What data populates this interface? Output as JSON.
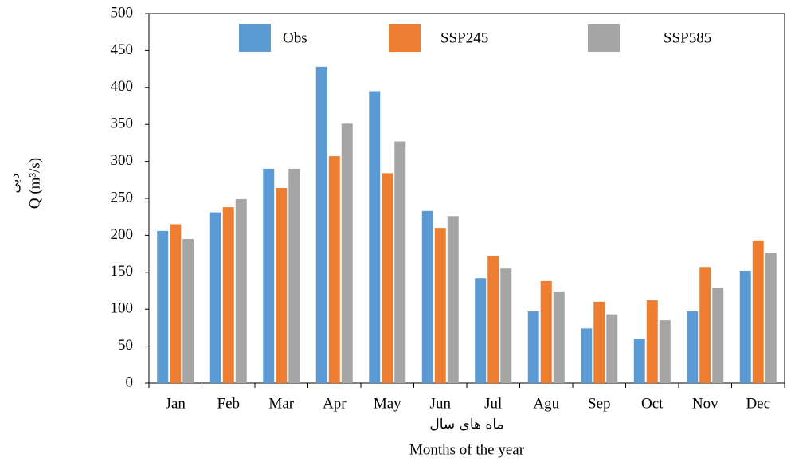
{
  "chart_data": {
    "type": "bar",
    "x_label": "ماه های سال",
    "x_label_en": "Months of the year",
    "y_label": "Q (m³/s)",
    "y_label_fa": "دبی",
    "categories": [
      "Jan",
      "Feb",
      "Mar",
      "Apr",
      "May",
      "Jun",
      "Jul",
      "Agu",
      "Sep",
      "Oct",
      "Nov",
      "Dec"
    ],
    "series": [
      {
        "name": "Obs",
        "color": "#5b9bd5",
        "values": [
          206,
          231,
          290,
          428,
          395,
          233,
          142,
          97,
          74,
          60,
          97,
          152
        ]
      },
      {
        "name": "SSP245",
        "color": "#ed7d31",
        "values": [
          215,
          238,
          264,
          307,
          284,
          210,
          172,
          138,
          110,
          112,
          157,
          193
        ]
      },
      {
        "name": "SSP585",
        "color": "#a5a5a5",
        "values": [
          195,
          249,
          290,
          351,
          327,
          226,
          155,
          124,
          93,
          85,
          129,
          176
        ]
      }
    ],
    "ylim": [
      0,
      500
    ],
    "yticks": [
      0,
      50,
      100,
      150,
      200,
      250,
      300,
      350,
      400,
      450,
      500
    ],
    "grid": false
  }
}
